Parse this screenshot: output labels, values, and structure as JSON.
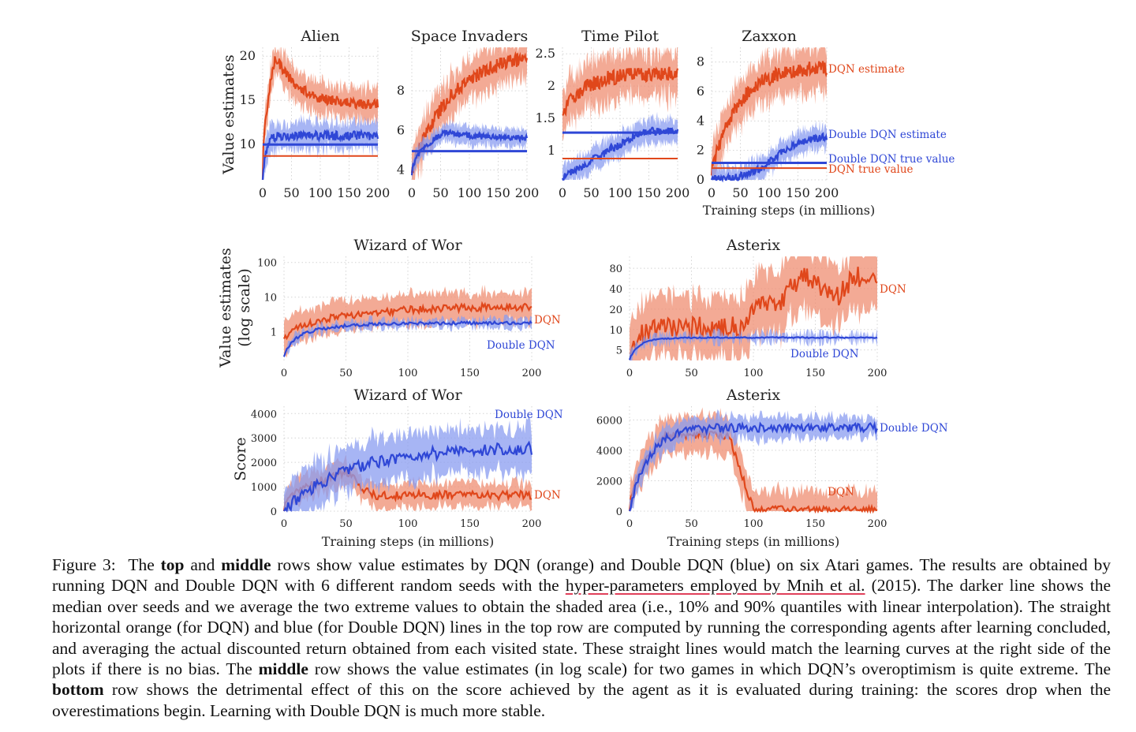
{
  "colors": {
    "dqn": "#e0471b",
    "ddqn": "#2f47d6",
    "dqn_band": "#ef8d72",
    "ddqn_band": "#8a9cf0"
  },
  "row_labels": {
    "top_y": "Value estimates",
    "mid_y_1": "Value estimates",
    "mid_y_2": "(log scale)",
    "bot_y": "Score"
  },
  "chart_data": [
    {
      "id": "alien",
      "type": "line",
      "title": "Alien",
      "xlim": [
        0,
        200
      ],
      "xticks": [
        0,
        50,
        100,
        150,
        200
      ],
      "ylim": [
        6,
        21
      ],
      "yticks": [
        10,
        15,
        20
      ],
      "series": [
        {
          "name": "DQN estimate",
          "color": "dqn",
          "shape": "peak-decay",
          "params": {
            "start": 6,
            "peak": 20,
            "peakAt": 22,
            "end": 14.5,
            "tau": 40,
            "noise": 0.6
          }
        },
        {
          "name": "Double DQN estimate",
          "color": "ddqn",
          "shape": "rise",
          "params": {
            "start": 6,
            "end": 11,
            "tau": 6,
            "noise": 0.5
          }
        }
      ],
      "hlines": [
        {
          "name": "DQN true value",
          "color": "dqn",
          "y": 8.7
        },
        {
          "name": "Double DQN true value",
          "color": "ddqn",
          "y": 10
        }
      ],
      "labels": []
    },
    {
      "id": "space",
      "type": "line",
      "title": "Space Invaders",
      "xlim": [
        0,
        200
      ],
      "xticks": [
        0,
        50,
        100,
        150,
        200
      ],
      "ylim": [
        3.5,
        10.2
      ],
      "yticks": [
        4,
        6,
        8
      ],
      "series": [
        {
          "name": "DQN estimate",
          "color": "dqn",
          "shape": "rise",
          "params": {
            "start": 4,
            "end": 10,
            "tau": 70,
            "noise": 0.35
          }
        },
        {
          "name": "Double DQN estimate",
          "color": "ddqn",
          "shape": "peak-decay",
          "params": {
            "start": 3.8,
            "peak": 5.9,
            "peakAt": 55,
            "end": 5.6,
            "tau": 60,
            "noise": 0.15
          }
        }
      ],
      "hlines": [
        {
          "name": "DQN true value",
          "color": "dqn",
          "y": 4.95
        },
        {
          "name": "Double DQN true value",
          "color": "ddqn",
          "y": 4.95
        }
      ],
      "labels": []
    },
    {
      "id": "timepilot",
      "type": "line",
      "title": "Time Pilot",
      "xlim": [
        0,
        200
      ],
      "xticks": [
        0,
        50,
        100,
        150,
        200
      ],
      "ylim": [
        0.55,
        2.6
      ],
      "yticks": [
        1.0,
        1.5,
        2.0,
        2.5
      ],
      "series": [
        {
          "name": "DQN estimate",
          "color": "dqn",
          "shape": "rise",
          "params": {
            "start": 1.6,
            "end": 2.2,
            "tau": 40,
            "noise": 0.12
          }
        },
        {
          "name": "Double DQN estimate",
          "color": "ddqn",
          "shape": "linear",
          "params": {
            "start": 0.6,
            "end": 1.3,
            "tau": 140,
            "noise": 0.06
          }
        }
      ],
      "hlines": [
        {
          "name": "DQN true value",
          "color": "dqn",
          "y": 0.88
        },
        {
          "name": "Double DQN true value",
          "color": "ddqn",
          "y": 1.28
        }
      ],
      "labels": []
    },
    {
      "id": "zaxxon",
      "type": "line",
      "title": "Zaxxon",
      "xlim": [
        0,
        200
      ],
      "xticks": [
        0,
        50,
        100,
        150,
        200
      ],
      "ylim": [
        0,
        9
      ],
      "yticks": [
        0,
        2,
        4,
        6,
        8
      ],
      "xlabel": "Training steps (in millions)",
      "series": [
        {
          "name": "DQN estimate",
          "color": "dqn",
          "shape": "rise",
          "params": {
            "start": 0.5,
            "end": 7.7,
            "tau": 45,
            "noise": 0.5
          }
        },
        {
          "name": "Double DQN estimate",
          "color": "ddqn",
          "shape": "sigmoid",
          "params": {
            "start": 0,
            "end": 3,
            "mid": 110,
            "width": 25,
            "noise": 0.25
          }
        }
      ],
      "hlines": [
        {
          "name": "DQN true value",
          "color": "dqn",
          "y": 0.8
        },
        {
          "name": "Double DQN true value",
          "color": "ddqn",
          "y": 1.15
        }
      ],
      "labels": [
        {
          "text": "DQN estimate",
          "color": "dqn"
        },
        {
          "text": "Double DQN estimate",
          "color": "ddqn"
        },
        {
          "text": "Double DQN true value",
          "color": "ddqn"
        },
        {
          "text": "DQN true value",
          "color": "dqn"
        }
      ]
    },
    {
      "id": "wow_value",
      "type": "line",
      "title": "Wizard of Wor",
      "xlim": [
        0,
        200
      ],
      "xticks": [
        0,
        50,
        100,
        150,
        200
      ],
      "ylim": [
        0.15,
        150
      ],
      "log": true,
      "yticks": [
        1,
        10,
        100
      ],
      "series": [
        {
          "name": "DQN",
          "color": "dqn",
          "shape": "rise",
          "params": {
            "start": 0.7,
            "end": 6,
            "tau": 90,
            "noise": 0.25,
            "logNoise": true,
            "spread": 2.8
          }
        },
        {
          "name": "Double DQN",
          "color": "ddqn",
          "shape": "rise",
          "params": {
            "start": 0.2,
            "end": 1.8,
            "tau": 30,
            "noise": 0.1,
            "logNoise": true,
            "spread": 1.3
          }
        }
      ],
      "hlines": [],
      "labels": [
        {
          "text": "DQN",
          "color": "dqn"
        },
        {
          "text": "Double DQN",
          "color": "ddqn"
        }
      ]
    },
    {
      "id": "asterix_value",
      "type": "line",
      "title": "Asterix",
      "xlim": [
        0,
        200
      ],
      "xticks": [
        0,
        50,
        100,
        150,
        200
      ],
      "ylim": [
        3.5,
        120
      ],
      "log": true,
      "yticks": [
        5,
        10,
        20,
        40,
        80
      ],
      "series": [
        {
          "name": "DQN",
          "color": "dqn",
          "shape": "explode",
          "params": {
            "start": 5,
            "end": 11,
            "tau": 10,
            "blowAt": 95,
            "high": 45,
            "noise": 0.35,
            "logNoise": true,
            "spread": 3
          }
        },
        {
          "name": "Double DQN",
          "color": "ddqn",
          "shape": "rise",
          "params": {
            "start": 3.6,
            "end": 7.6,
            "tau": 10,
            "noise": 0.02,
            "logNoise": true,
            "spread": 1.05
          }
        }
      ],
      "hlines": [],
      "labels": [
        {
          "text": "DQN",
          "color": "dqn"
        },
        {
          "text": "Double DQN",
          "color": "ddqn"
        }
      ]
    },
    {
      "id": "wow_score",
      "type": "line",
      "title": "Wizard of Wor",
      "xlim": [
        0,
        200
      ],
      "xticks": [
        0,
        50,
        100,
        150,
        200
      ],
      "ylim": [
        0,
        4300
      ],
      "yticks": [
        0,
        1000,
        2000,
        3000,
        4000
      ],
      "xlabel": "Training steps (in millions)",
      "series": [
        {
          "name": "DQN",
          "color": "dqn",
          "shape": "rise-drop",
          "params": {
            "start": 0,
            "peak": 1600,
            "peakAt": 50,
            "end": 650,
            "noise": 180,
            "spread": 500
          }
        },
        {
          "name": "Double DQN",
          "color": "ddqn",
          "shape": "rise",
          "params": {
            "start": 0,
            "end": 2600,
            "tau": 50,
            "noise": 260,
            "spread": 900
          }
        }
      ],
      "hlines": [],
      "labels": [
        {
          "text": "Double DQN",
          "color": "ddqn"
        },
        {
          "text": "DQN",
          "color": "dqn"
        }
      ]
    },
    {
      "id": "asterix_score",
      "type": "line",
      "title": "Asterix",
      "xlim": [
        0,
        200
      ],
      "xticks": [
        0,
        50,
        100,
        150,
        200
      ],
      "ylim": [
        0,
        6900
      ],
      "yticks": [
        0,
        2000,
        4000,
        6000
      ],
      "xlabel": "Training steps (in millions)",
      "series": [
        {
          "name": "DQN",
          "color": "dqn",
          "shape": "rise-drop",
          "params": {
            "start": 0,
            "peak": 5000,
            "peakAt": 30,
            "end": 100,
            "dropAt": 80,
            "noise": 250,
            "spread": 1200
          }
        },
        {
          "name": "Double DQN",
          "color": "ddqn",
          "shape": "rise",
          "params": {
            "start": 0,
            "end": 5500,
            "tau": 15,
            "noise": 280,
            "spread": 700
          }
        }
      ],
      "hlines": [],
      "labels": [
        {
          "text": "Double DQN",
          "color": "ddqn"
        },
        {
          "text": "DQN",
          "color": "dqn"
        }
      ]
    }
  ],
  "caption": {
    "label": "Figure 3:",
    "p1": "The ",
    "b1": "top",
    "p2": " and ",
    "b2": "middle",
    "p3": " rows show value estimates by DQN (orange) and Double DQN (blue) on six Atari games. The results are obtained by running DQN and Double DQN with 6 different random seeds with the ",
    "link": "hyper-parameters employed by Mnih et al.",
    "p4": " (2015). The darker line shows the median over seeds and we average the two extreme values to obtain the shaded area (i.e., 10% and 90% quantiles with linear interpolation). The straight horizontal orange (for DQN) and blue (for Double DQN) lines in the top row are computed by running the corresponding agents after learning concluded, and averaging the actual discounted return obtained from each visited state. These straight lines would match the learning curves at the right side of the plots if there is no bias. The ",
    "b3": "middle",
    "p5": " row shows the value estimates (in log scale) for two games in which DQN’s overoptimism is quite extreme. The ",
    "b4": "bottom",
    "p6": " row shows the detrimental effect of this on the score achieved by the agent as it is evaluated during training: the scores drop when the overestimations begin. Learning with Double DQN is much more stable."
  }
}
